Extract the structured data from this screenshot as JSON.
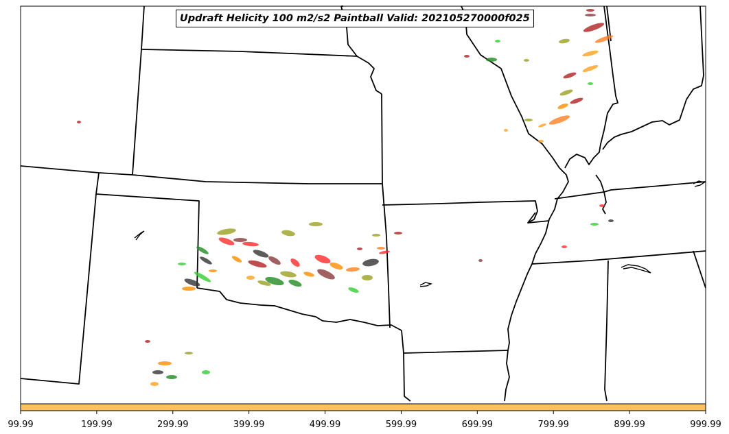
{
  "title": "Updraft Helicity 100 m2/s2 Paintball Valid: 202105270000f025",
  "colorbar": {
    "color": "#ffc060",
    "tick_labels": [
      "99.99",
      "199.99",
      "299.99",
      "399.99",
      "499.99",
      "599.99",
      "699.99",
      "799.99",
      "899.99",
      "999.99"
    ]
  },
  "paintball_colors": [
    "#b22222",
    "#ff8c00",
    "#ff2a2a",
    "#9aa020",
    "#228b22",
    "#32cd32",
    "#ff7f24",
    "#333333",
    "#8b3a3a",
    "#ffa020"
  ],
  "map_features": [
    "state-boundaries",
    "mississippi-river",
    "lakes"
  ]
}
